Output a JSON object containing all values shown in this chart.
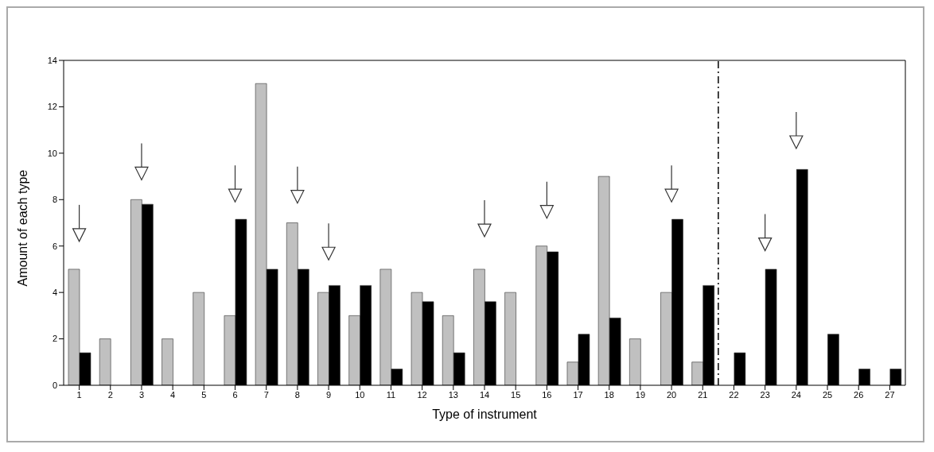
{
  "chart_data": {
    "type": "bar",
    "xlabel": "Type of instrument",
    "ylabel": "Amount of each type",
    "x": [
      1,
      2,
      3,
      4,
      5,
      6,
      7,
      8,
      9,
      10,
      11,
      12,
      13,
      14,
      15,
      16,
      17,
      18,
      19,
      20,
      21,
      22,
      23,
      24,
      25,
      26,
      27
    ],
    "xlim": [
      0.5,
      27.5
    ],
    "xticks": [
      1,
      2,
      3,
      4,
      5,
      6,
      7,
      8,
      9,
      10,
      11,
      12,
      13,
      14,
      15,
      16,
      17,
      18,
      19,
      20,
      21,
      22,
      23,
      24,
      25,
      26,
      27
    ],
    "ylim": [
      0,
      14
    ],
    "yticks": [
      0,
      2,
      4,
      6,
      8,
      10,
      12,
      14
    ],
    "series": [
      {
        "color": "#c0c0c0",
        "values": [
          5,
          2,
          8,
          2,
          4,
          3,
          13,
          7,
          4,
          3,
          5,
          4,
          3,
          5,
          4,
          6,
          1,
          9,
          2,
          4,
          1,
          null,
          null,
          null,
          null,
          null,
          null
        ]
      },
      {
        "color": "#000000",
        "values": [
          1.4,
          null,
          7.8,
          null,
          null,
          7.15,
          5,
          5,
          4.3,
          4.3,
          0.7,
          3.6,
          1.4,
          3.6,
          null,
          5.75,
          2.2,
          2.9,
          null,
          7.15,
          4.3,
          1.4,
          5,
          9.3,
          2.2,
          0.7,
          0.7
        ]
      }
    ],
    "ref_lines": [
      {
        "axis": "x",
        "value": 21.5,
        "color": "#000000",
        "line_style": "dashed"
      }
    ],
    "grid": false,
    "legend": false
  }
}
